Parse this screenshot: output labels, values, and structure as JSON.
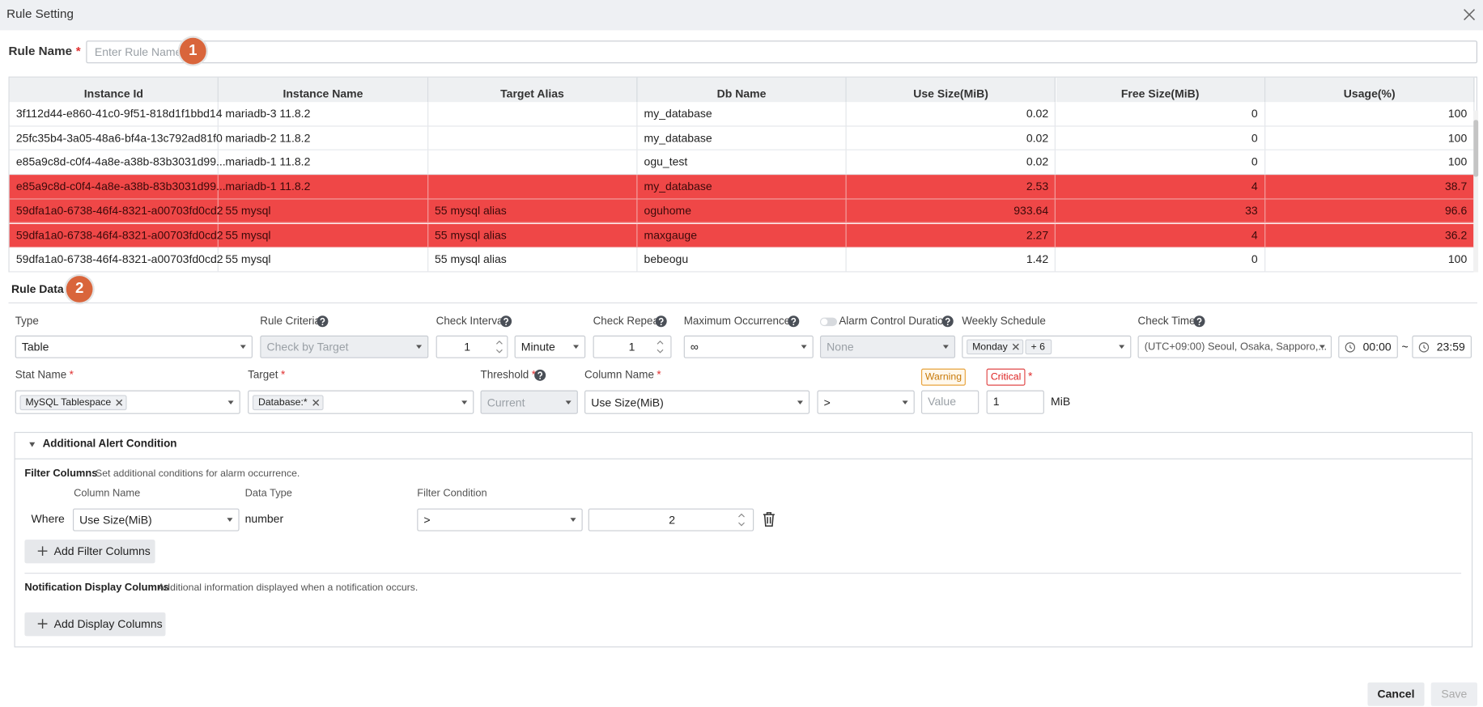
{
  "header": {
    "title": "Rule Setting"
  },
  "rule_name": {
    "label": "Rule Name",
    "required": "*",
    "placeholder": "Enter Rule Name.",
    "step_badge": "1"
  },
  "table": {
    "columns": [
      "Instance Id",
      "Instance Name",
      "Target Alias",
      "Db Name",
      "Use Size(MiB)",
      "Free Size(MiB)",
      "Usage(%)"
    ],
    "column_align": [
      "left",
      "left",
      "left",
      "left",
      "right",
      "right",
      "right"
    ],
    "rows": [
      [
        "3f112d44-e860-41c0-9f51-818d1f1bbd14",
        "mariadb-3 11.8.2",
        null,
        "my_database",
        "0.02",
        "0",
        "100"
      ],
      [
        "25fc35b4-3a05-48a6-bf4a-13c792ad81f0",
        "mariadb-2 11.8.2",
        null,
        "my_database",
        "0.02",
        "0",
        "100"
      ],
      [
        "e85a9c8d-c0f4-4a8e-a38b-83b3031d99...",
        "mariadb-1 11.8.2",
        null,
        "ogu_test",
        "0.02",
        "0",
        "100"
      ],
      [
        "e85a9c8d-c0f4-4a8e-a38b-83b3031d99...",
        "mariadb-1 11.8.2",
        null,
        "my_database",
        "2.53",
        "4",
        "38.7"
      ],
      [
        "59dfa1a0-6738-46f4-8321-a00703fd0cd2",
        "55 mysql",
        "55 mysql alias",
        "oguhome",
        "933.64",
        "33",
        "96.6"
      ],
      [
        "59dfa1a0-6738-46f4-8321-a00703fd0cd2",
        "55 mysql",
        "55 mysql alias",
        "maxgauge",
        "2.27",
        "4",
        "36.2"
      ],
      [
        "59dfa1a0-6738-46f4-8321-a00703fd0cd2",
        "55 mysql",
        "55 mysql alias",
        "bebeogu",
        "1.42",
        "0",
        "100"
      ]
    ],
    "highlighted_rows": [
      false,
      false,
      false,
      true,
      true,
      true,
      false
    ]
  },
  "rule_data": {
    "title": "Rule Data",
    "step_badge": "2",
    "type": {
      "label": "Type",
      "value": "Table"
    },
    "rule_criteria": {
      "label": "Rule Criteria",
      "value": "Check by Target"
    },
    "check_interval": {
      "label": "Check Interval",
      "value": "1",
      "unit": "Minute"
    },
    "check_repeat": {
      "label": "Check Repeat",
      "value": "1"
    },
    "maximum_occurrences": {
      "label": "Maximum Occurrences",
      "value": "∞"
    },
    "alarm_control_duration": {
      "label": "Alarm Control Duration",
      "value": "None"
    },
    "weekly_schedule": {
      "label": "Weekly Schedule",
      "tags": [
        "Monday",
        "+ 6"
      ]
    },
    "check_time": {
      "label": "Check Time",
      "timezone": "(UTC+09:00) Seoul, Osaka, Sapporo,...",
      "start": "00:00",
      "separator": "~",
      "end": "23:59"
    },
    "stat_name": {
      "label": "Stat Name",
      "required": "*",
      "tag": "MySQL Tablespace"
    },
    "target": {
      "label": "Target",
      "required": "*",
      "tag": "Database:*"
    },
    "threshold": {
      "label": "Threshold",
      "required": "*",
      "value": "Current"
    },
    "column_name": {
      "label": "Column Name",
      "required": "*",
      "value": "Use Size(MiB)",
      "operator": ">"
    },
    "warning": {
      "label": "Warning",
      "placeholder": "Value"
    },
    "critical": {
      "label": "Critical",
      "required": "*",
      "value": "1",
      "unit": "MiB"
    }
  },
  "additional_alert_condition": {
    "title": "Additional Alert Condition",
    "filter_columns": {
      "title": "Filter Columns",
      "description": "Set additional conditions for alarm occurrence.",
      "headers": [
        "Column Name",
        "Data Type",
        "Filter Condition"
      ],
      "row": {
        "prefix": "Where",
        "column": "Use Size(MiB)",
        "data_type": "number",
        "operator": ">",
        "value": "2"
      },
      "add_button": "Add Filter Columns"
    },
    "notification_display_columns": {
      "title": "Notification Display Columns",
      "description": "Additional information displayed when a notification occurs.",
      "add_button": "Add Display Columns"
    }
  },
  "footer": {
    "cancel": "Cancel",
    "save": "Save"
  }
}
